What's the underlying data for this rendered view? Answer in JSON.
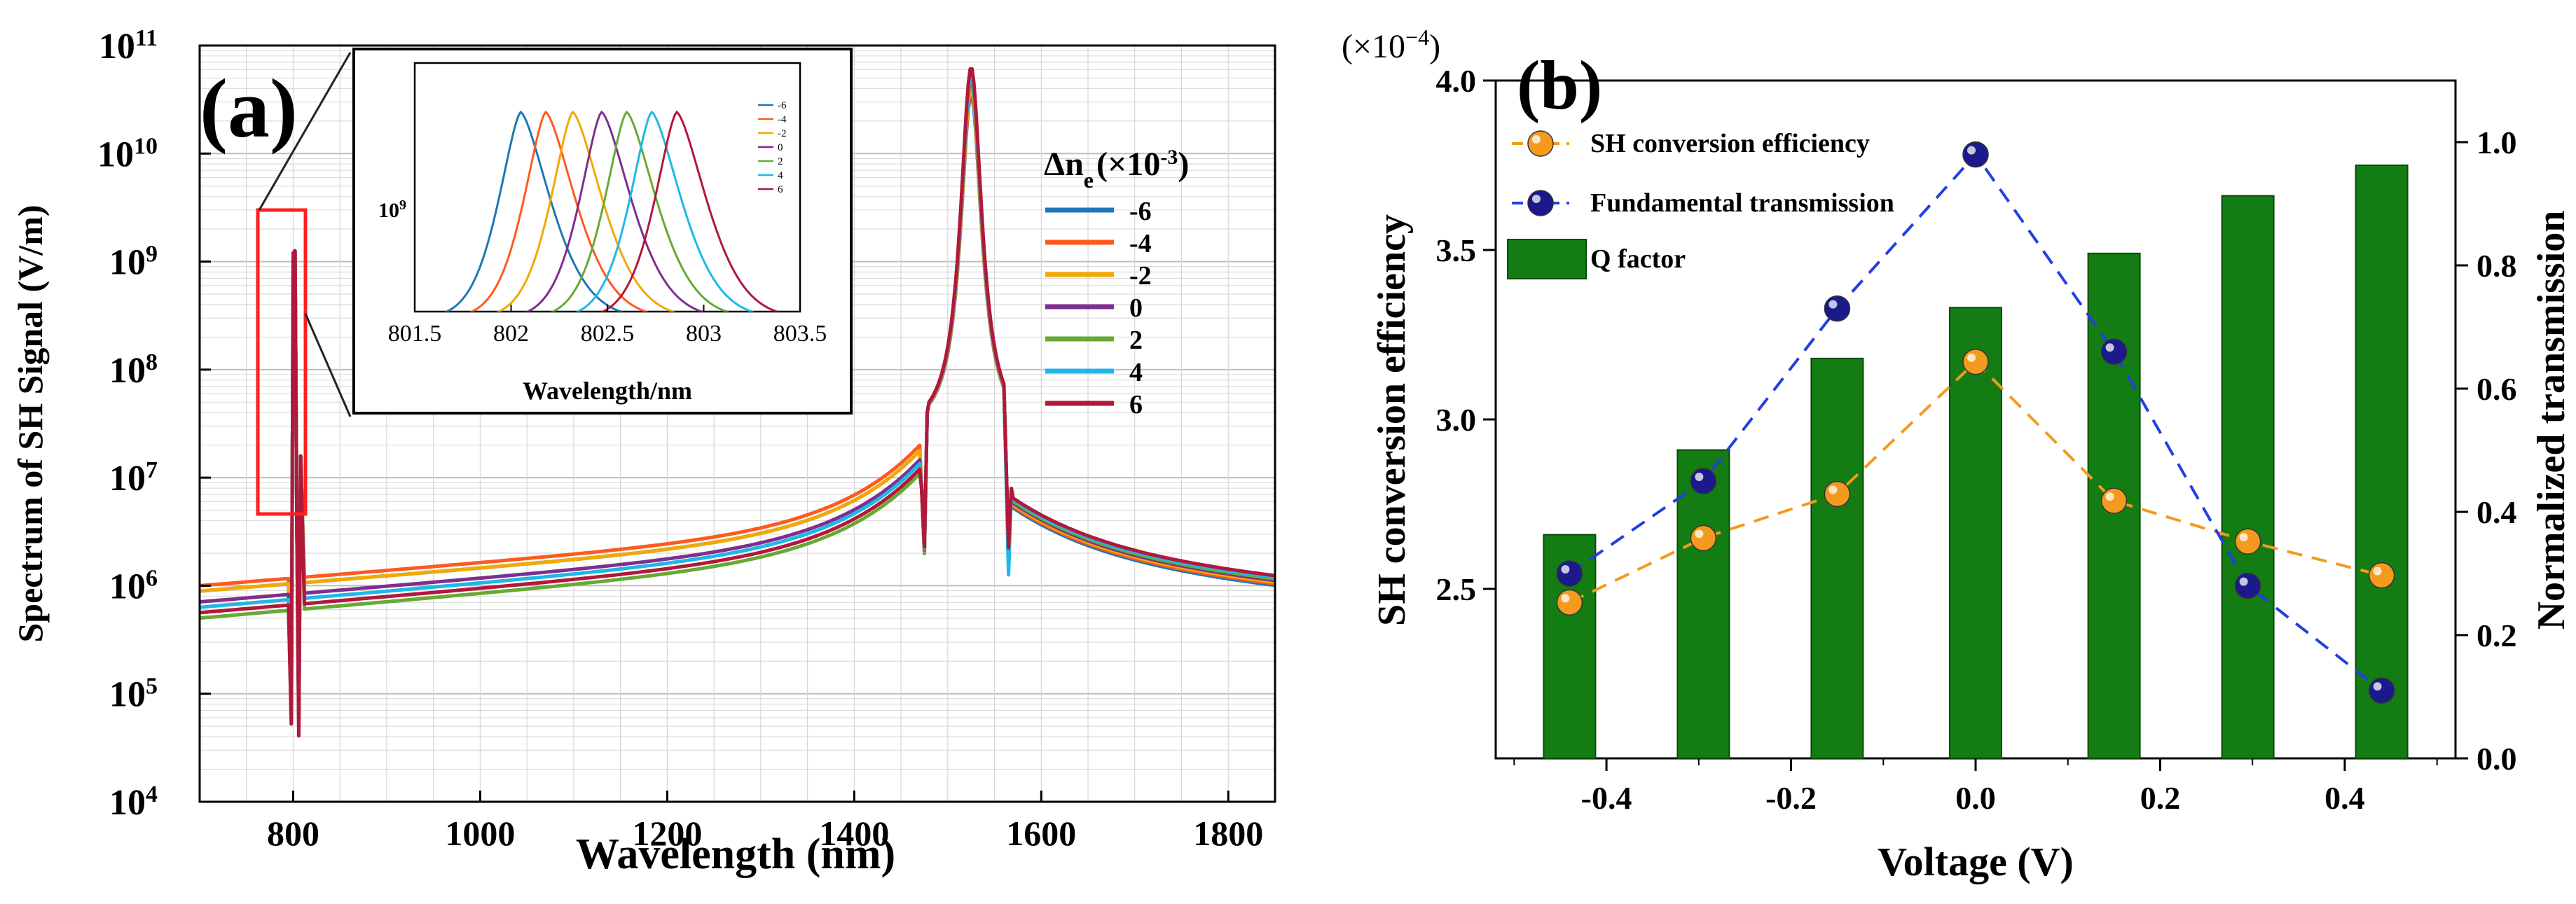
{
  "chart_data": [
    {
      "id": "a",
      "type": "line",
      "panel_label": "(a)",
      "xlabel": "Wavelength (nm)",
      "ylabel": "Spectrum of SH Signal (V/m)",
      "yscale": "log",
      "xlim": [
        700,
        1850
      ],
      "ylim_exp": [
        4,
        11
      ],
      "grid": true,
      "x_ticks": [
        "800",
        "1000",
        "1200",
        "1400",
        "1600",
        "1800"
      ],
      "x_tick_values": [
        800,
        1000,
        1200,
        1400,
        1600,
        1800
      ],
      "y_tick_base": "10",
      "y_tick_exps": [
        "4",
        "5",
        "6",
        "7",
        "8",
        "9",
        "10",
        "11"
      ],
      "legend_title_main": "Δn",
      "legend_title_sub": "e",
      "legend_title_rest": "(×10",
      "legend_title_sup": "-3",
      "legend_title_end": ")",
      "legend_position": "right",
      "series": [
        {
          "name": "-6",
          "color": "#1f77b4",
          "base_log": 5.95,
          "slope_log": 0.0007,
          "peak_log": 10.55
        },
        {
          "name": "-4",
          "color": "#ff5a1e",
          "base_log": 6.0,
          "slope_log": 0.0007,
          "peak_log": 10.6
        },
        {
          "name": "-2",
          "color": "#f2a900",
          "base_log": 5.95,
          "slope_log": 0.0007,
          "peak_log": 10.62
        },
        {
          "name": "0",
          "color": "#7e2f8e",
          "base_log": 5.85,
          "slope_log": 0.00072,
          "peak_log": 10.7
        },
        {
          "name": "2",
          "color": "#66aa33",
          "base_log": 5.7,
          "slope_log": 0.00075,
          "peak_log": 10.72
        },
        {
          "name": "4",
          "color": "#1fb8e6",
          "base_log": 5.8,
          "slope_log": 0.00074,
          "peak_log": 10.75
        },
        {
          "name": "6",
          "color": "#b2183a",
          "base_log": 5.75,
          "slope_log": 0.00074,
          "peak_log": 10.8
        }
      ],
      "features": {
        "sh_peak_nm": 805,
        "main_resonance_nm": 1525,
        "dip_left_nm": 1475,
        "dip_right_nm": 1565,
        "dip_log": 6.3
      },
      "inset": {
        "xlabel": "Wavelength/nm",
        "xlim": [
          801.5,
          803.5
        ],
        "x_ticks": [
          "801.5",
          "802",
          "802.5",
          "803",
          "803.5"
        ],
        "x_tick_values": [
          801.5,
          802,
          802.5,
          803,
          803.5
        ],
        "y_tick_base": "10",
        "y_tick_exp": "9",
        "peak_centers_nm": [
          802.05,
          802.18,
          802.32,
          802.47,
          802.6,
          802.73,
          802.86
        ],
        "legend_labels": [
          "-6",
          "-4",
          "-2",
          "0",
          "2",
          "4",
          "6"
        ]
      }
    },
    {
      "id": "b",
      "type": "bar",
      "panel_label": "(b)",
      "multiplier_base": "(×10",
      "multiplier_exp": "−4",
      "multiplier_end": ")",
      "xlabel": "Voltage (V)",
      "ylabel_left": "SH conversion efficiency",
      "ylabel_right": "Normalized transmission",
      "xlim": [
        -0.52,
        0.52
      ],
      "ylim_left": [
        2.0,
        4.0
      ],
      "ylim_right": [
        0.0,
        1.1
      ],
      "x_ticks": [
        "-0.4",
        "-0.2",
        "0.0",
        "0.2",
        "0.4"
      ],
      "x_tick_values": [
        -0.4,
        -0.2,
        0.0,
        0.2,
        0.4
      ],
      "y_left_ticks": [
        "2.5",
        "3.0",
        "3.5",
        "4.0"
      ],
      "y_left_tick_values": [
        2.5,
        3.0,
        3.5,
        4.0
      ],
      "y_right_ticks": [
        "0.0",
        "0.2",
        "0.4",
        "0.6",
        "0.8",
        "1.0"
      ],
      "y_right_tick_values": [
        0.0,
        0.2,
        0.4,
        0.6,
        0.8,
        1.0
      ],
      "x": [
        -0.44,
        -0.295,
        -0.15,
        0.0,
        0.15,
        0.295,
        0.44
      ],
      "series": [
        {
          "name": "SH conversion efficiency",
          "type": "line-marker",
          "axis": "left",
          "color": "#f39a1f",
          "values": [
            2.46,
            2.65,
            2.78,
            3.17,
            2.76,
            2.64,
            2.54
          ]
        },
        {
          "name": "Fundamental transmission",
          "type": "line-marker",
          "axis": "right",
          "color": "#1a1a8c",
          "values": [
            0.3,
            0.45,
            0.73,
            0.98,
            0.66,
            0.28,
            0.11
          ]
        },
        {
          "name": "Q factor",
          "type": "bar",
          "axis": "left",
          "color": "#137d13",
          "values": [
            2.66,
            2.91,
            3.18,
            3.33,
            3.49,
            3.66,
            3.75
          ]
        }
      ],
      "legend_position": "top-left"
    }
  ]
}
